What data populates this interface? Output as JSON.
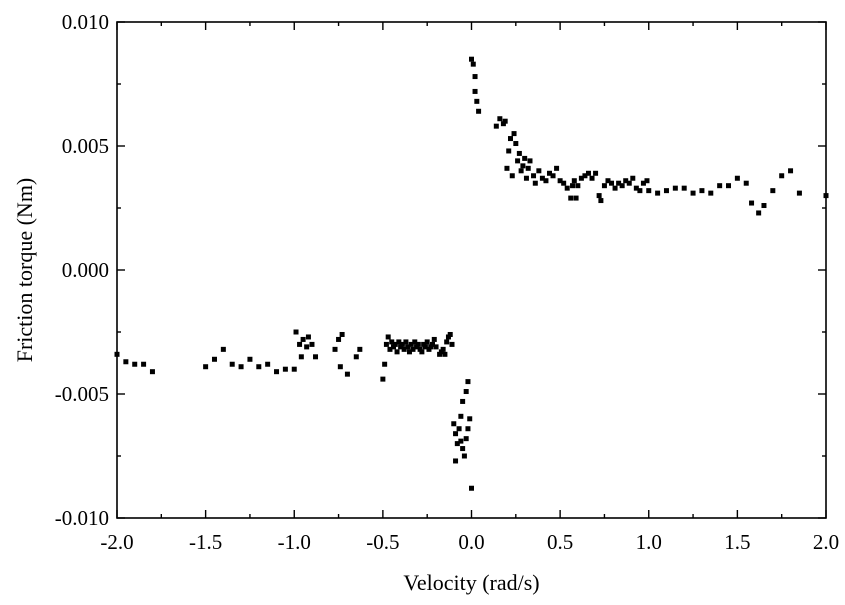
{
  "chart_data": {
    "type": "scatter",
    "title": "",
    "xlabel": "Velocity (rad/s)",
    "ylabel": "Friction torque (Nm)",
    "xlim": [
      -2.0,
      2.0
    ],
    "ylim": [
      -0.01,
      0.01
    ],
    "x_ticks": [
      -2.0,
      -1.5,
      -1.0,
      -0.5,
      0.0,
      0.5,
      1.0,
      1.5,
      2.0
    ],
    "x_tick_labels": [
      "-2.0",
      "-1.5",
      "-1.0",
      "-0.5",
      "0.0",
      "0.5",
      "1.0",
      "1.5",
      "2.0"
    ],
    "y_ticks": [
      -0.01,
      -0.005,
      0.0,
      0.005,
      0.01
    ],
    "y_tick_labels": [
      "-0.010",
      "-0.005",
      "0.000",
      "0.005",
      "0.010"
    ],
    "grid": false,
    "legend": "none",
    "marker": "square",
    "marker_color": "#000000",
    "points": [
      [
        -2.0,
        -0.0034
      ],
      [
        -1.95,
        -0.0037
      ],
      [
        -1.9,
        -0.0038
      ],
      [
        -1.85,
        -0.0038
      ],
      [
        -1.8,
        -0.0041
      ],
      [
        -1.5,
        -0.0039
      ],
      [
        -1.45,
        -0.0036
      ],
      [
        -1.4,
        -0.0032
      ],
      [
        -1.35,
        -0.0038
      ],
      [
        -1.3,
        -0.0039
      ],
      [
        -1.25,
        -0.0036
      ],
      [
        -1.2,
        -0.0039
      ],
      [
        -1.15,
        -0.0038
      ],
      [
        -1.1,
        -0.0041
      ],
      [
        -1.05,
        -0.004
      ],
      [
        -1.0,
        -0.004
      ],
      [
        -0.99,
        -0.0025
      ],
      [
        -0.97,
        -0.003
      ],
      [
        -0.96,
        -0.0035
      ],
      [
        -0.95,
        -0.0028
      ],
      [
        -0.93,
        -0.0031
      ],
      [
        -0.92,
        -0.0027
      ],
      [
        -0.9,
        -0.003
      ],
      [
        -0.88,
        -0.0035
      ],
      [
        -0.77,
        -0.0032
      ],
      [
        -0.75,
        -0.0028
      ],
      [
        -0.74,
        -0.0039
      ],
      [
        -0.73,
        -0.0026
      ],
      [
        -0.7,
        -0.0042
      ],
      [
        -0.65,
        -0.0035
      ],
      [
        -0.63,
        -0.0032
      ],
      [
        -0.5,
        -0.0044
      ],
      [
        -0.49,
        -0.0038
      ],
      [
        -0.48,
        -0.003
      ],
      [
        -0.47,
        -0.0027
      ],
      [
        -0.46,
        -0.0032
      ],
      [
        -0.45,
        -0.0029
      ],
      [
        -0.44,
        -0.0031
      ],
      [
        -0.43,
        -0.003
      ],
      [
        -0.42,
        -0.0033
      ],
      [
        -0.41,
        -0.0029
      ],
      [
        -0.4,
        -0.0031
      ],
      [
        -0.39,
        -0.003
      ],
      [
        -0.38,
        -0.0032
      ],
      [
        -0.37,
        -0.0029
      ],
      [
        -0.36,
        -0.0031
      ],
      [
        -0.35,
        -0.0033
      ],
      [
        -0.34,
        -0.003
      ],
      [
        -0.33,
        -0.0032
      ],
      [
        -0.32,
        -0.0029
      ],
      [
        -0.31,
        -0.0031
      ],
      [
        -0.3,
        -0.003
      ],
      [
        -0.29,
        -0.0032
      ],
      [
        -0.28,
        -0.0033
      ],
      [
        -0.27,
        -0.003
      ],
      [
        -0.26,
        -0.0031
      ],
      [
        -0.25,
        -0.0029
      ],
      [
        -0.24,
        -0.0032
      ],
      [
        -0.23,
        -0.0031
      ],
      [
        -0.22,
        -0.003
      ],
      [
        -0.21,
        -0.0028
      ],
      [
        -0.2,
        -0.0031
      ],
      [
        -0.18,
        -0.0034
      ],
      [
        -0.17,
        -0.0033
      ],
      [
        -0.16,
        -0.0032
      ],
      [
        -0.15,
        -0.0034
      ],
      [
        -0.14,
        -0.0029
      ],
      [
        -0.13,
        -0.0027
      ],
      [
        -0.12,
        -0.0026
      ],
      [
        -0.11,
        -0.003
      ],
      [
        -0.1,
        -0.0062
      ],
      [
        -0.09,
        -0.0066
      ],
      [
        -0.09,
        -0.0077
      ],
      [
        -0.08,
        -0.007
      ],
      [
        -0.07,
        -0.0064
      ],
      [
        -0.06,
        -0.0059
      ],
      [
        -0.06,
        -0.0069
      ],
      [
        -0.05,
        -0.0072
      ],
      [
        -0.05,
        -0.0053
      ],
      [
        -0.04,
        -0.0075
      ],
      [
        -0.03,
        -0.0068
      ],
      [
        -0.03,
        -0.0049
      ],
      [
        -0.02,
        -0.0064
      ],
      [
        -0.02,
        -0.0045
      ],
      [
        -0.01,
        -0.006
      ],
      [
        0.0,
        -0.0088
      ],
      [
        0.0,
        0.0085
      ],
      [
        0.01,
        0.0083
      ],
      [
        0.02,
        0.0078
      ],
      [
        0.02,
        0.0072
      ],
      [
        0.03,
        0.0068
      ],
      [
        0.04,
        0.0064
      ],
      [
        0.14,
        0.0058
      ],
      [
        0.16,
        0.0061
      ],
      [
        0.18,
        0.0059
      ],
      [
        0.19,
        0.006
      ],
      [
        0.2,
        0.0041
      ],
      [
        0.21,
        0.0048
      ],
      [
        0.22,
        0.0053
      ],
      [
        0.23,
        0.0038
      ],
      [
        0.24,
        0.0055
      ],
      [
        0.25,
        0.0051
      ],
      [
        0.26,
        0.0044
      ],
      [
        0.27,
        0.0047
      ],
      [
        0.28,
        0.004
      ],
      [
        0.29,
        0.0042
      ],
      [
        0.3,
        0.0045
      ],
      [
        0.31,
        0.0037
      ],
      [
        0.32,
        0.0041
      ],
      [
        0.33,
        0.0044
      ],
      [
        0.35,
        0.0038
      ],
      [
        0.36,
        0.0035
      ],
      [
        0.38,
        0.004
      ],
      [
        0.4,
        0.0037
      ],
      [
        0.42,
        0.0036
      ],
      [
        0.44,
        0.0039
      ],
      [
        0.46,
        0.0038
      ],
      [
        0.48,
        0.0041
      ],
      [
        0.5,
        0.0036
      ],
      [
        0.52,
        0.0035
      ],
      [
        0.54,
        0.0033
      ],
      [
        0.56,
        0.0029
      ],
      [
        0.57,
        0.0034
      ],
      [
        0.58,
        0.0036
      ],
      [
        0.59,
        0.0029
      ],
      [
        0.6,
        0.0034
      ],
      [
        0.62,
        0.0037
      ],
      [
        0.64,
        0.0038
      ],
      [
        0.66,
        0.0039
      ],
      [
        0.68,
        0.0037
      ],
      [
        0.7,
        0.0039
      ],
      [
        0.72,
        0.003
      ],
      [
        0.73,
        0.0028
      ],
      [
        0.75,
        0.0034
      ],
      [
        0.77,
        0.0036
      ],
      [
        0.79,
        0.0035
      ],
      [
        0.81,
        0.0033
      ],
      [
        0.83,
        0.0035
      ],
      [
        0.85,
        0.0034
      ],
      [
        0.87,
        0.0036
      ],
      [
        0.89,
        0.0035
      ],
      [
        0.91,
        0.0037
      ],
      [
        0.93,
        0.0033
      ],
      [
        0.95,
        0.0032
      ],
      [
        0.97,
        0.0035
      ],
      [
        0.99,
        0.0036
      ],
      [
        1.0,
        0.0032
      ],
      [
        1.05,
        0.0031
      ],
      [
        1.1,
        0.0032
      ],
      [
        1.15,
        0.0033
      ],
      [
        1.2,
        0.0033
      ],
      [
        1.25,
        0.0031
      ],
      [
        1.3,
        0.0032
      ],
      [
        1.35,
        0.0031
      ],
      [
        1.4,
        0.0034
      ],
      [
        1.45,
        0.0034
      ],
      [
        1.5,
        0.0037
      ],
      [
        1.55,
        0.0035
      ],
      [
        1.58,
        0.0027
      ],
      [
        1.62,
        0.0023
      ],
      [
        1.65,
        0.0026
      ],
      [
        1.7,
        0.0032
      ],
      [
        1.75,
        0.0038
      ],
      [
        1.8,
        0.004
      ],
      [
        1.85,
        0.0031
      ],
      [
        2.0,
        0.003
      ]
    ]
  }
}
